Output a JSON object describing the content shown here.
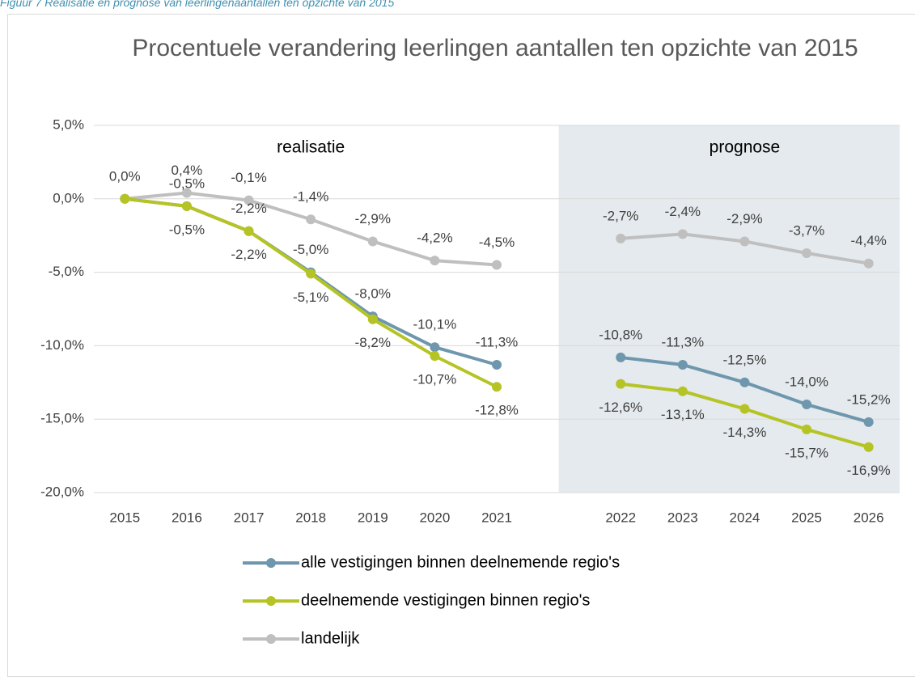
{
  "caption": "Figuur 7 Realisatie en prognose van leerlingenaantallen ten opzichte van 2015",
  "chart_data": {
    "type": "line",
    "title": "Procentuele verandering leerlingen aantallen ten opzichte van 2015",
    "annotations": [
      "realisatie",
      "prognose"
    ],
    "categories": [
      "2015",
      "2016",
      "2017",
      "2018",
      "2019",
      "2020",
      "2021",
      null,
      "2022",
      "2023",
      "2024",
      "2025",
      "2026"
    ],
    "ylim": [
      -20,
      5
    ],
    "yticks": [
      {
        "value": 5,
        "label": "5,0%"
      },
      {
        "value": 0,
        "label": "0,0%"
      },
      {
        "value": -5,
        "label": "-5,0%"
      },
      {
        "value": -10,
        "label": "-10,0%"
      },
      {
        "value": -15,
        "label": "-15,0%"
      },
      {
        "value": -20,
        "label": "-20,0%"
      }
    ],
    "grid": true,
    "legend": "bottom",
    "series": [
      {
        "name": "alle vestigingen binnen deelnemende regio's",
        "color": "#6e97ad",
        "values": [
          0,
          -0.5,
          -2.2,
          -5.0,
          -8.0,
          -10.1,
          -11.3,
          null,
          -10.8,
          -11.3,
          -12.5,
          -14.0,
          -15.2
        ],
        "value_labels": [
          null,
          "-0,5%",
          "-2,2%",
          "-5,0%",
          "-8,0%",
          "-10,1%",
          "-11,3%",
          null,
          "-10,8%",
          "-11,3%",
          "-12,5%",
          "-14,0%",
          "-15,2%"
        ]
      },
      {
        "name": "deelnemende vestigingen binnen regio's",
        "color": "#b5c424",
        "values": [
          0,
          -0.5,
          -2.2,
          -5.1,
          -8.2,
          -10.7,
          -12.8,
          null,
          -12.6,
          -13.1,
          -14.3,
          -15.7,
          -16.9
        ],
        "value_labels": [
          null,
          "-0,5%",
          "-2,2%",
          "-5,1%",
          "-8,2%",
          "-10,7%",
          "-12,8%",
          null,
          "-12,6%",
          "-13,1%",
          "-14,3%",
          "-15,7%",
          "-16,9%"
        ]
      },
      {
        "name": "landelijk",
        "color": "#bfbfbf",
        "values": [
          0.0,
          0.4,
          -0.1,
          -1.4,
          -2.9,
          -4.2,
          -4.5,
          null,
          -2.7,
          -2.4,
          -2.9,
          -3.7,
          -4.4
        ],
        "value_labels": [
          "0,0%",
          "0,4%",
          "-0,1%",
          "-1,4%",
          "-2,9%",
          "-4,2%",
          "-4,5%",
          null,
          "-2,7%",
          "-2,4%",
          "-2,9%",
          "-3,7%",
          "-4,4%"
        ]
      }
    ]
  }
}
